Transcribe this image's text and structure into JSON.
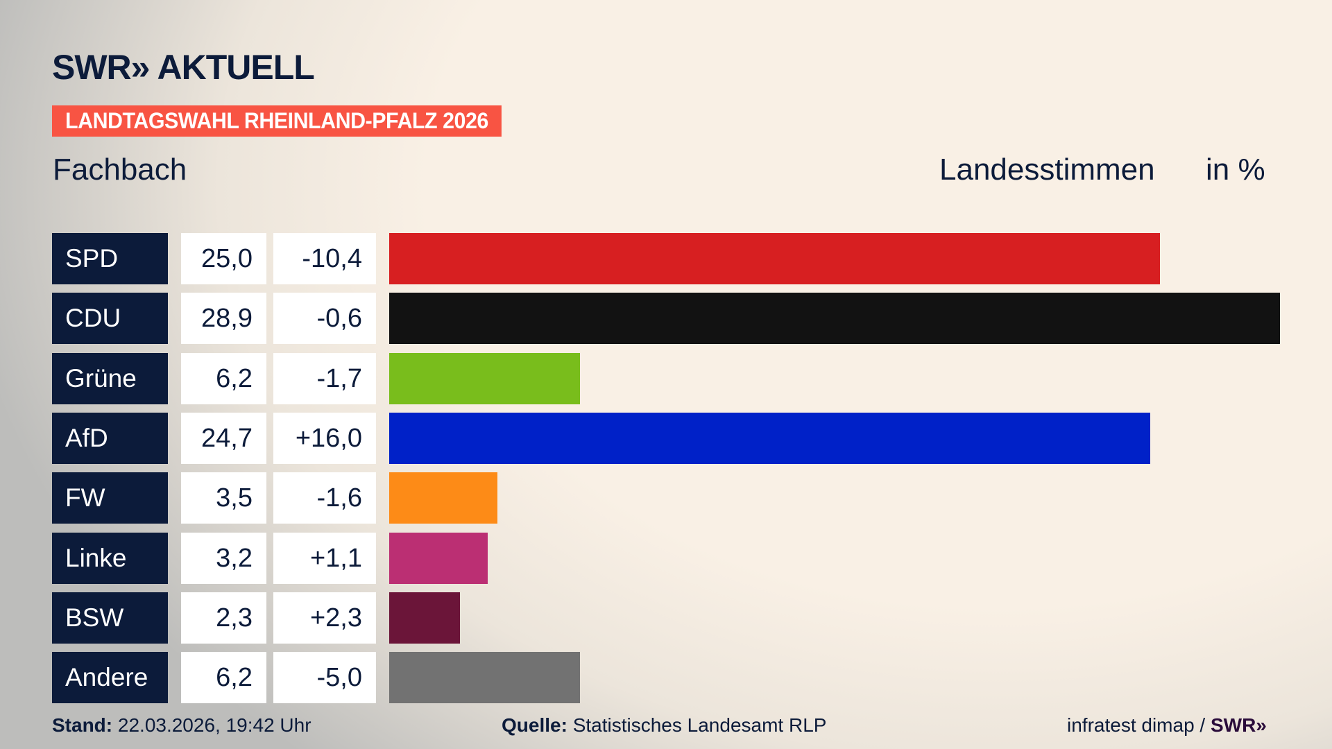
{
  "header": {
    "logo": "SWR» AKTUELL",
    "banner": "LANDTAGSWAHL RHEINLAND-PFALZ 2026",
    "location": "Fachbach",
    "vote_type": "Landesstimmen",
    "unit": "in %"
  },
  "chart_data": {
    "type": "bar",
    "orientation": "horizontal",
    "xlim": [
      0,
      28.9
    ],
    "categories": [
      "SPD",
      "CDU",
      "Grüne",
      "AfD",
      "FW",
      "Linke",
      "BSW",
      "Andere"
    ],
    "values": [
      25.0,
      28.9,
      6.2,
      24.7,
      3.5,
      3.2,
      2.3,
      6.2
    ],
    "value_labels": [
      "25,0",
      "28,9",
      "6,2",
      "24,7",
      "3,5",
      "3,2",
      "2,3",
      "6,2"
    ],
    "diffs": [
      "-10,4",
      "-0,6",
      "-1,7",
      "+16,0",
      "-1,6",
      "+1,1",
      "+2,3",
      "-5,0"
    ],
    "colors": [
      "#d71f21",
      "#121212",
      "#79bd1c",
      "#0021c8",
      "#fd8b17",
      "#bb2f73",
      "#6b1539",
      "#727272"
    ]
  },
  "footer": {
    "stand_label": "Stand:",
    "stand_value": "22.03.2026, 19:42 Uhr",
    "source_label": "Quelle:",
    "source_value": "Statistisches Landesamt RLP",
    "credit": "infratest dimap /",
    "credit_logo": "SWR»"
  }
}
